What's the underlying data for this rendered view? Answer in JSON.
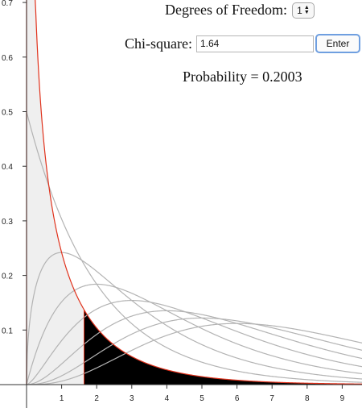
{
  "controls": {
    "df_label": "Degrees of Freedom:",
    "df_value": "1",
    "chi_label": "Chi-square:",
    "chi_value": "1.64",
    "enter_label": "Enter",
    "probability_text": "Probability = 0.2003"
  },
  "colors": {
    "curves": "#b3b3b3",
    "highlight_curve": "#e0321c",
    "left_region": "#efefef",
    "tail_region": "#000000",
    "axis": "#333333"
  },
  "chart_data": {
    "type": "area",
    "title": "",
    "xlabel": "",
    "ylabel": "",
    "xlim": [
      -0.1,
      9.6
    ],
    "ylim": [
      0,
      0.7
    ],
    "x_ticks": [
      "1",
      "2",
      "3",
      "4",
      "5",
      "6",
      "7",
      "8",
      "9"
    ],
    "y_ticks": [
      "0.1",
      "0.2",
      "0.3",
      "0.4",
      "0.5",
      "0.6",
      "0.7"
    ],
    "degrees_of_freedom_curves": [
      1,
      2,
      3,
      4,
      5,
      6,
      7,
      8
    ],
    "highlighted_df": 1,
    "critical_value": 1.64,
    "tail_probability": 0.2003
  }
}
